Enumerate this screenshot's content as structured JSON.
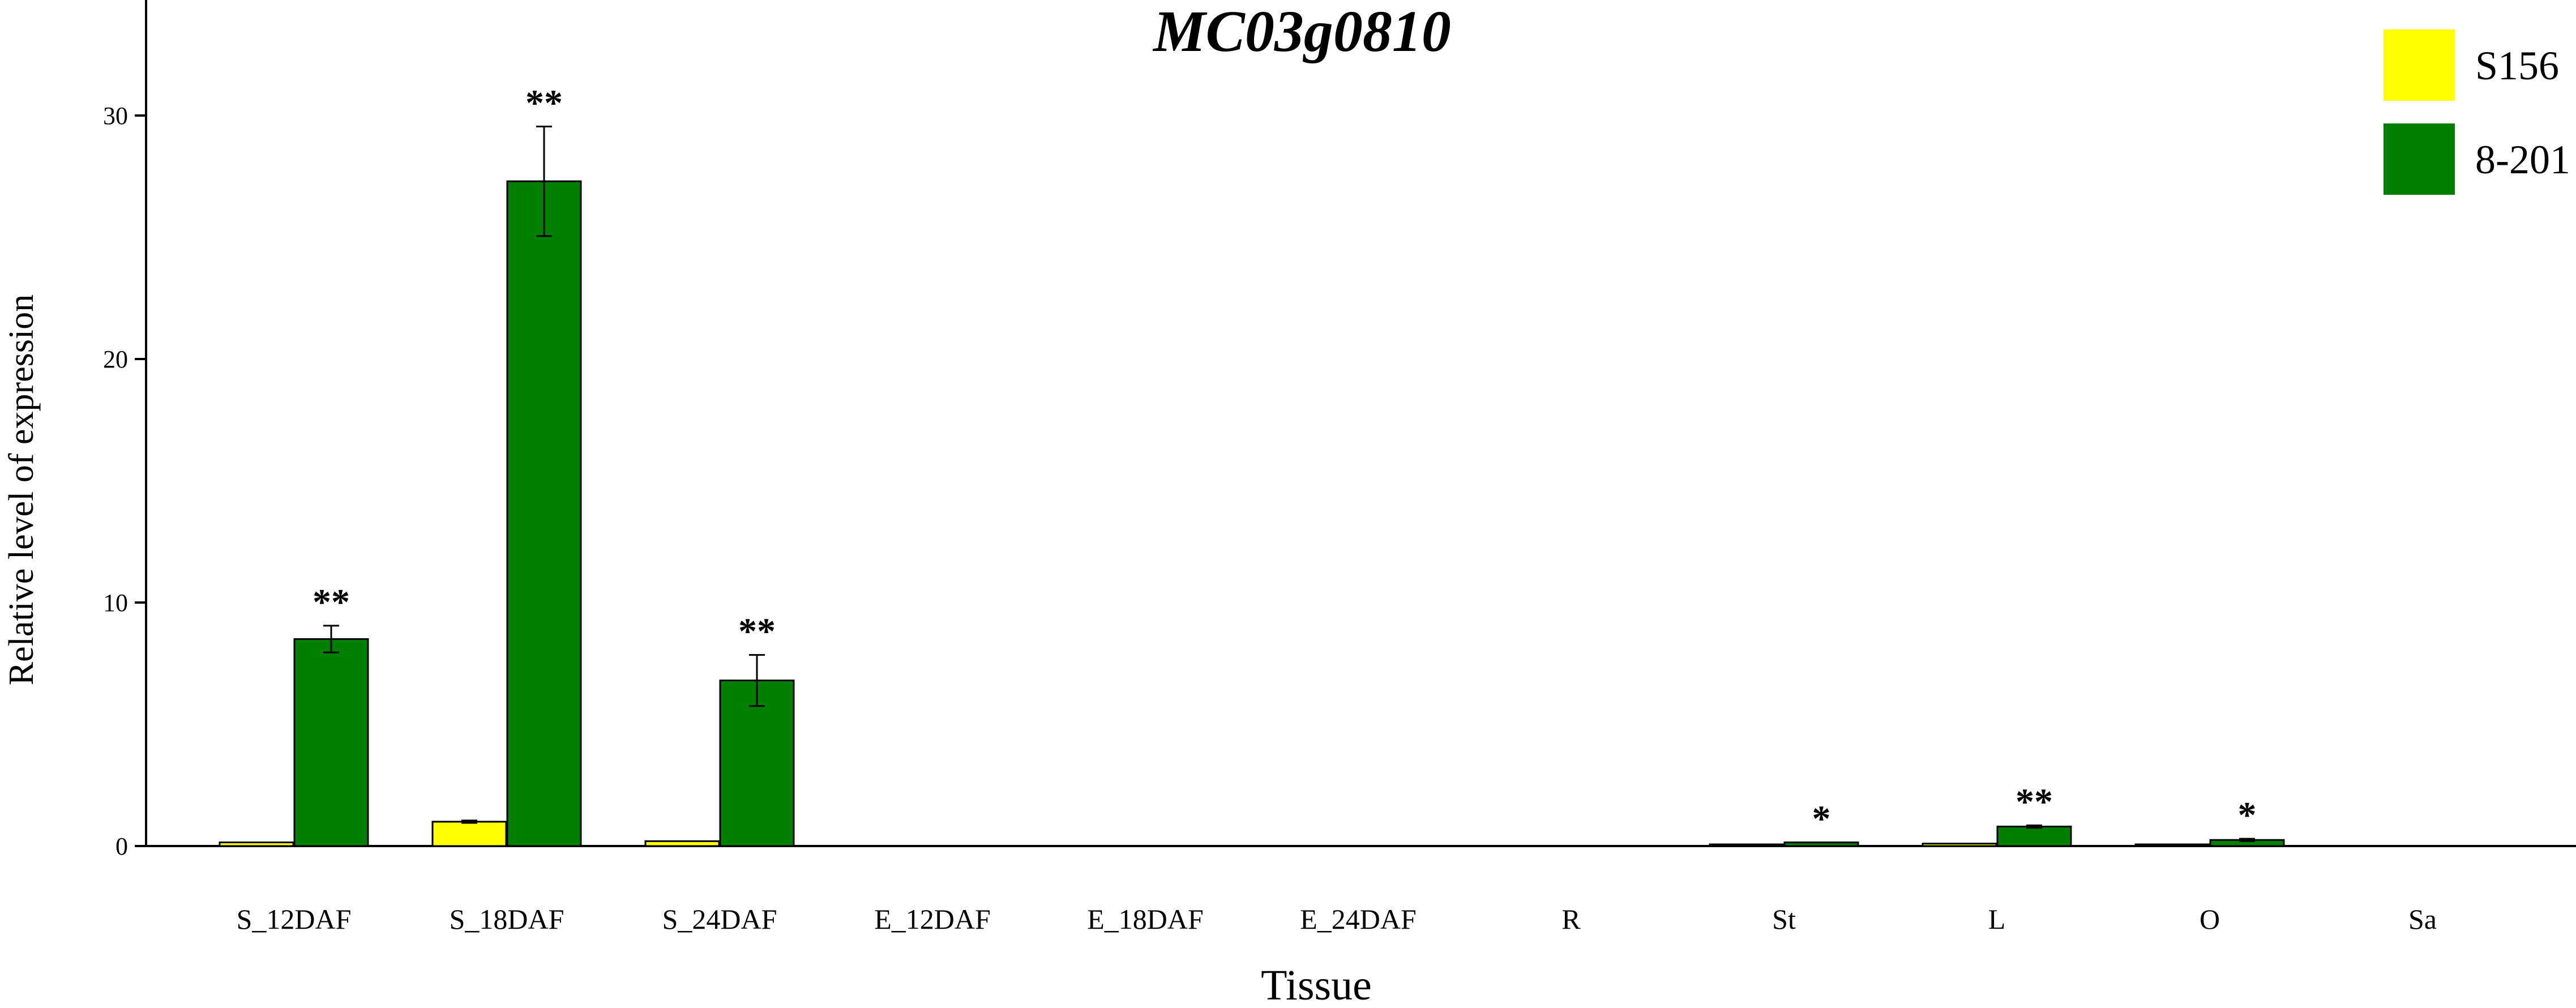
{
  "chart_data": {
    "type": "bar",
    "title": "MC03g0810",
    "xlabel": "Tissue",
    "ylabel": "Relative level of expression",
    "ylim": [
      0,
      35
    ],
    "yticks": [
      0,
      10,
      20,
      30
    ],
    "grid": false,
    "legend_position": "top-right",
    "categories": [
      "S_12DAF",
      "S_18DAF",
      "S_24DAF",
      "E_12DAF",
      "E_18DAF",
      "E_24DAF",
      "R",
      "St",
      "L",
      "O",
      "Sa"
    ],
    "series": [
      {
        "name": "S156",
        "color": "#ffff00",
        "values": [
          0.15,
          1.0,
          0.2,
          0,
          0,
          0,
          0,
          0.05,
          0.1,
          0.05,
          0
        ],
        "errors": [
          0,
          0.05,
          0,
          0,
          0,
          0,
          0,
          0,
          0,
          0,
          0
        ]
      },
      {
        "name": "8-201",
        "color": "#008000",
        "values": [
          8.5,
          27.3,
          6.8,
          0,
          0,
          0,
          0,
          0.15,
          0.8,
          0.25,
          0
        ],
        "errors": [
          0.55,
          2.25,
          1.05,
          0,
          0,
          0,
          0,
          0,
          0.05,
          0.05,
          0
        ]
      }
    ],
    "significance": [
      "**",
      "**",
      "**",
      "",
      "",
      "",
      "",
      "*",
      "**",
      "*",
      ""
    ]
  }
}
